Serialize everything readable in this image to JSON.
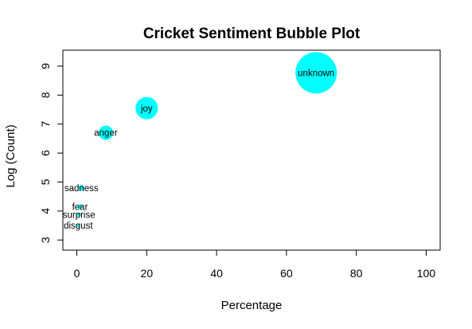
{
  "chart_data": {
    "type": "scatter",
    "variant": "bubble",
    "title": "Cricket Sentiment Bubble Plot",
    "xlabel": "Percentage",
    "ylabel": "Log (Count)",
    "xlim": [
      -4,
      104
    ],
    "ylim": [
      2.65,
      9.55
    ],
    "xticks": [
      0,
      20,
      40,
      60,
      80,
      100
    ],
    "yticks": [
      3,
      4,
      5,
      6,
      7,
      8,
      9
    ],
    "grid": false,
    "legend": "none",
    "bubble_color": "#00FFFF",
    "points": [
      {
        "label": "unknown",
        "x": 68.5,
        "y": 8.77,
        "size": 68.5
      },
      {
        "label": "joy",
        "x": 20.0,
        "y": 7.55,
        "size": 20.0
      },
      {
        "label": "anger",
        "x": 8.3,
        "y": 6.7,
        "size": 8.3
      },
      {
        "label": "sadness",
        "x": 1.3,
        "y": 4.8,
        "size": 1.3
      },
      {
        "label": "fear",
        "x": 0.9,
        "y": 4.15,
        "size": 0.9
      },
      {
        "label": "surprise",
        "x": 0.6,
        "y": 3.88,
        "size": 0.6
      },
      {
        "label": "disgust",
        "x": 0.4,
        "y": 3.5,
        "size": 0.4
      }
    ]
  }
}
